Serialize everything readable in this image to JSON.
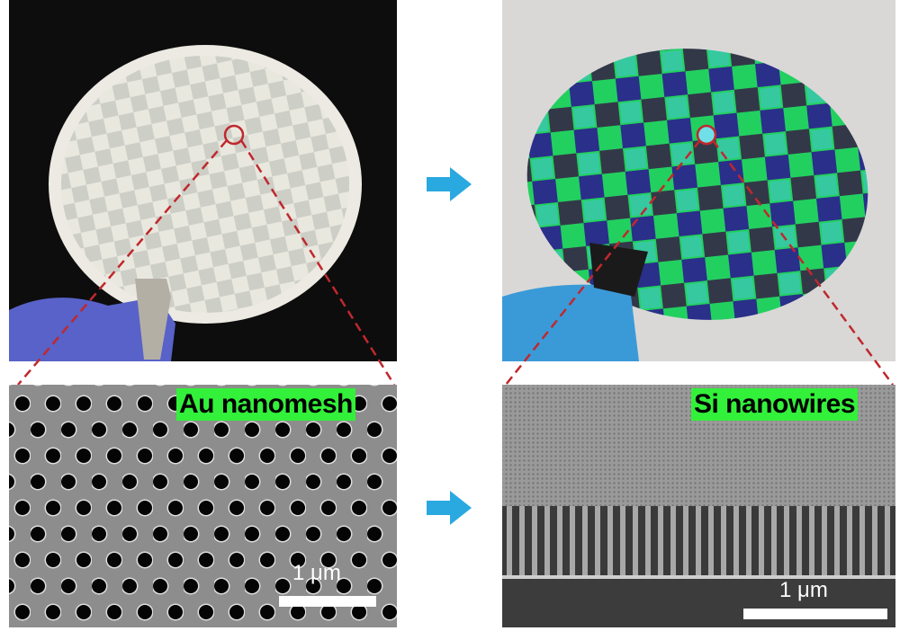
{
  "panels": {
    "top_left": {
      "content": "photo of Au-nanomesh-patterned wafer held with tweezers"
    },
    "top_right": {
      "content": "photo of iridescent Si nanowire wafer held by gloved hand"
    },
    "bottom_left": {
      "label": "Au nanomesh",
      "scale_bar": "1 μm"
    },
    "bottom_right": {
      "label": "Si nanowires",
      "scale_bar": "1 μm"
    }
  },
  "colors": {
    "label_bg": "#33f03a",
    "arrow": "#29a9e0",
    "zoom_line": "#c0282d"
  },
  "icons": [
    "arrow-right-icon",
    "arrow-right-icon"
  ]
}
